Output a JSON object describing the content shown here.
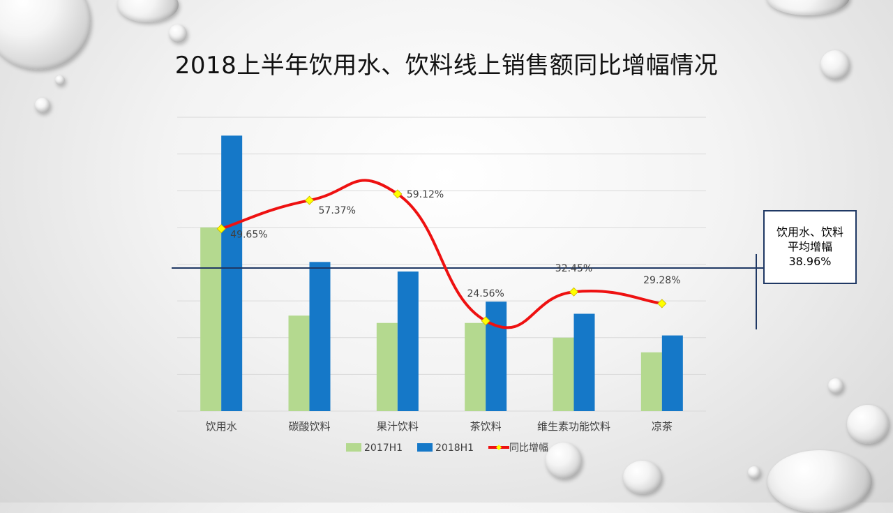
{
  "slide": {
    "title": "2018上半年饮用水、饮料线上销售额同比增幅情况"
  },
  "average_box": {
    "line1": "饮用水、饮料",
    "line2": "平均增幅",
    "value": "38.96%"
  },
  "chart_data": {
    "type": "bar",
    "title": "2018上半年饮用水、饮料线上销售额同比增幅情况",
    "categories": [
      "饮用水",
      "碳酸饮料",
      "果汁饮料",
      "茶饮料",
      "维生素功能饮料",
      "凉茶"
    ],
    "series": [
      {
        "name": "2017H1",
        "type": "bar",
        "color": "#b4d98f",
        "values": [
          5.0,
          2.6,
          2.4,
          2.4,
          2.0,
          1.6
        ]
      },
      {
        "name": "2018H1",
        "type": "bar",
        "color": "#1578c8",
        "values": [
          7.5,
          4.06,
          3.8,
          2.98,
          2.65,
          2.06
        ]
      },
      {
        "name": "同比增幅",
        "type": "line",
        "color": "#ee1111",
        "marker_color": "#ffff00",
        "values": [
          49.65,
          57.37,
          59.12,
          24.56,
          32.45,
          29.28
        ],
        "labels": [
          "49.65%",
          "57.37%",
          "59.12%",
          "24.56%",
          "32.45%",
          "29.28%"
        ]
      }
    ],
    "reference_line": {
      "value": 38.96,
      "label": "38.96%",
      "color": "#1f3864"
    },
    "legend": {
      "position": "bottom"
    },
    "grid": true
  }
}
